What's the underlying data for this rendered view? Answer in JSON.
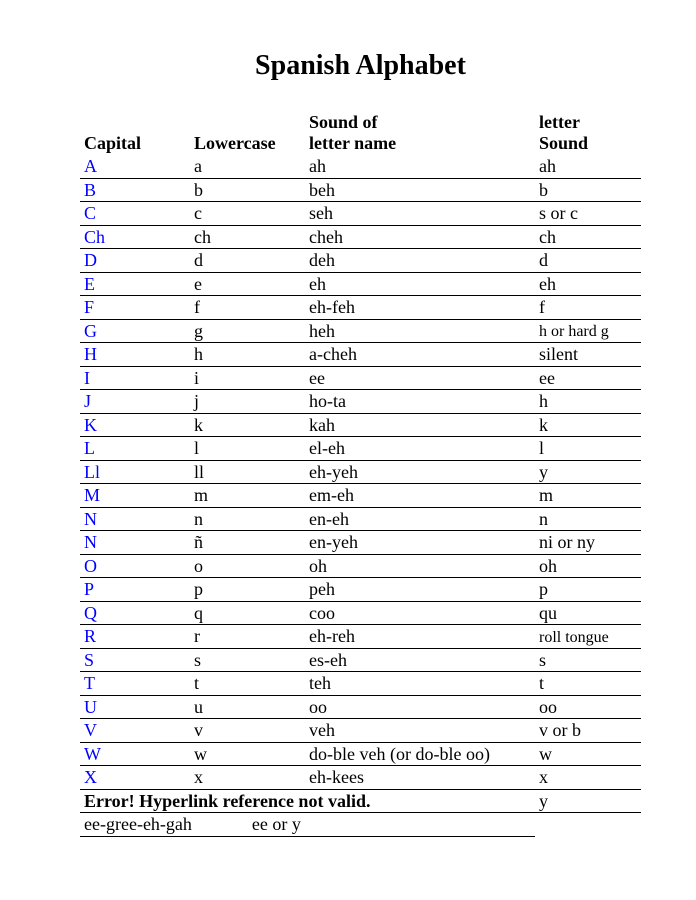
{
  "title": "Spanish Alphabet",
  "headers": {
    "capital": "Capital",
    "lowercase": "Lowercase",
    "sound_name_l1": "Sound of",
    "sound_name_l2": "letter name",
    "letter_sound_l1": "letter",
    "letter_sound_l2": "Sound"
  },
  "rows": [
    {
      "cap": "A",
      "low": "a",
      "name": "ah",
      "sound": "ah"
    },
    {
      "cap": "B",
      "low": "b",
      "name": "beh",
      "sound": "b"
    },
    {
      "cap": "C",
      "low": "c",
      "name": "seh",
      "sound": "s or c"
    },
    {
      "cap": "Ch",
      "low": "ch",
      "name": "cheh",
      "sound": "ch"
    },
    {
      "cap": "D",
      "low": "d",
      "name": "deh",
      "sound": "d"
    },
    {
      "cap": "E",
      "low": "e",
      "name": "eh",
      "sound": "eh"
    },
    {
      "cap": "F",
      "low": "f",
      "name": "eh-feh",
      "sound": "f"
    },
    {
      "cap": "G",
      "low": "g",
      "name": "heh",
      "sound": "h or hard g",
      "small": true
    },
    {
      "cap": "H",
      "low": "h",
      "name": "a-cheh",
      "sound": "silent"
    },
    {
      "cap": "I",
      "low": "i",
      "name": "ee",
      "sound": "ee"
    },
    {
      "cap": "J",
      "low": "j",
      "name": "ho-ta",
      "sound": "h"
    },
    {
      "cap": "K",
      "low": "k",
      "name": "kah",
      "sound": "k"
    },
    {
      "cap": "L",
      "low": "l",
      "name": "el-eh",
      "sound": "l"
    },
    {
      "cap": "Ll",
      "low": "ll",
      "name": "eh-yeh",
      "sound": "y"
    },
    {
      "cap": "M",
      "low": "m",
      "name": "em-eh",
      "sound": "m"
    },
    {
      "cap": "N",
      "low": "n",
      "name": "en-eh",
      "sound": "n"
    },
    {
      "cap": "N",
      "low": "ñ",
      "name": "en-yeh",
      "sound": "ni or ny"
    },
    {
      "cap": "O",
      "low": "o",
      "name": "oh",
      "sound": "oh"
    },
    {
      "cap": "P",
      "low": "p",
      "name": "peh",
      "sound": "p"
    },
    {
      "cap": "Q",
      "low": "q",
      "name": "coo",
      "sound": "qu"
    },
    {
      "cap": "R",
      "low": "r",
      "name": "eh-reh",
      "sound": "roll tongue",
      "small": true
    },
    {
      "cap": "S",
      "low": "s",
      "name": "es-eh",
      "sound": "s"
    },
    {
      "cap": "T",
      "low": "t",
      "name": "teh",
      "sound": "t"
    },
    {
      "cap": "U",
      "low": "u",
      "name": "oo",
      "sound": "oo"
    },
    {
      "cap": "V",
      "low": "v",
      "name": "veh",
      "sound": "v or b"
    },
    {
      "cap": "W",
      "low": "w",
      "name": "do-ble veh (or do-ble oo)",
      "sound": "w"
    },
    {
      "cap": "X",
      "low": "x",
      "name": "eh-kees",
      "sound": "x"
    }
  ],
  "error_text": "Error! Hyperlink reference not valid.",
  "error_sound": "y",
  "tail_name": "ee-gree-eh-gah",
  "tail_sound": "ee or y"
}
